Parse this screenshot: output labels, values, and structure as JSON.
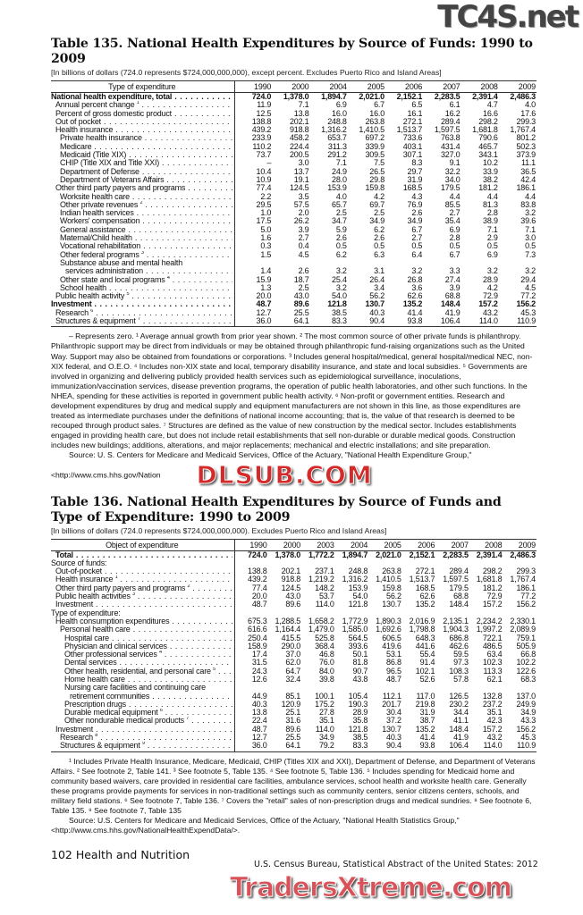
{
  "watermarks": {
    "top": "TC4S.net",
    "middle": "DLSUB.COM",
    "bottom": "TradersXtreme.com"
  },
  "table135": {
    "title": "Table 135. National Health Expenditures by Source of Funds: 1990 to 2009",
    "subtitle": "[In billions of dollars (724.0 represents $724,000,000,000), except percent. Excludes Puerto Rico and Island Areas]",
    "label_header": "Type of expenditure",
    "years": [
      "1990",
      "2000",
      "2004",
      "2005",
      "2006",
      "2007",
      "2008",
      "2009"
    ],
    "rows": [
      {
        "label": "National health expenditure, total",
        "level": 0,
        "bold": true,
        "values": [
          "724.0",
          "1,378.0",
          "1,894.7",
          "2,021.0",
          "2,152.1",
          "2,283.5",
          "2,391.4",
          "2,486.3"
        ]
      },
      {
        "label": "Annual percent change",
        "note": "1",
        "level": 1,
        "values": [
          "11.9",
          "7.1",
          "6.9",
          "6.7",
          "6.5",
          "6.1",
          "4.7",
          "4.0"
        ]
      },
      {
        "label": "Percent of gross domestic product",
        "level": 1,
        "values": [
          "12.5",
          "13.8",
          "16.0",
          "16.0",
          "16.1",
          "16.2",
          "16.6",
          "17.6"
        ]
      },
      {
        "label": "Out of pocket",
        "level": 1,
        "values": [
          "138.8",
          "202.1",
          "248.8",
          "263.8",
          "272.1",
          "289.4",
          "298.2",
          "299.3"
        ]
      },
      {
        "label": "Health insurance",
        "level": 1,
        "values": [
          "439.2",
          "918.8",
          "1,316.2",
          "1,410.5",
          "1,513.7",
          "1,597.5",
          "1,681.8",
          "1,767.4"
        ]
      },
      {
        "label": "Private health insurance",
        "level": 2,
        "values": [
          "233.9",
          "458.2",
          "653.7",
          "697.2",
          "733.6",
          "763.8",
          "790.6",
          "801.2"
        ]
      },
      {
        "label": "Medicare",
        "level": 2,
        "values": [
          "110.2",
          "224.4",
          "311.3",
          "339.9",
          "403.1",
          "431.4",
          "465.7",
          "502.3"
        ]
      },
      {
        "label": "Medicaid (Title XIX)",
        "level": 2,
        "values": [
          "73.7",
          "200.5",
          "291.2",
          "309.5",
          "307.1",
          "327.0",
          "343.1",
          "373.9"
        ]
      },
      {
        "label": "CHIP (Title XIX and Title XXI)",
        "level": 2,
        "values": [
          "–",
          "3.0",
          "7.1",
          "7.5",
          "8.3",
          "9.1",
          "10.2",
          "11.1"
        ]
      },
      {
        "label": "Department of Defense",
        "level": 2,
        "values": [
          "10.4",
          "13.7",
          "24.9",
          "26.5",
          "29.7",
          "32.2",
          "33.9",
          "36.5"
        ]
      },
      {
        "label": "Department of Veterans Affairs",
        "level": 2,
        "values": [
          "10.9",
          "19.1",
          "28.0",
          "29.8",
          "31.9",
          "34.0",
          "38.2",
          "42.4"
        ]
      },
      {
        "label": "Other third party payers and programs",
        "level": 1,
        "values": [
          "77.4",
          "124.5",
          "153.9",
          "159.8",
          "168.5",
          "179.5",
          "181.2",
          "186.1"
        ]
      },
      {
        "label": "Worksite health care",
        "level": 2,
        "values": [
          "2.2",
          "3.5",
          "4.0",
          "4.2",
          "4.3",
          "4.4",
          "4.4",
          "4.4"
        ]
      },
      {
        "label": "Other private revenues",
        "note": "2",
        "level": 2,
        "values": [
          "29.5",
          "57.5",
          "65.7",
          "69.7",
          "76.9",
          "85.5",
          "81.3",
          "83.8"
        ]
      },
      {
        "label": "Indian health services",
        "level": 2,
        "values": [
          "1.0",
          "2.0",
          "2.5",
          "2.5",
          "2.6",
          "2.7",
          "2.8",
          "3.2"
        ]
      },
      {
        "label": "Workers' compensation",
        "level": 2,
        "values": [
          "17.5",
          "26.2",
          "34.7",
          "34.9",
          "34.9",
          "35.4",
          "38.9",
          "39.6"
        ]
      },
      {
        "label": "General assistance",
        "level": 2,
        "values": [
          "5.0",
          "3.9",
          "5.9",
          "6.2",
          "6.7",
          "6.9",
          "7.1",
          "7.1"
        ]
      },
      {
        "label": "Maternal/Child health",
        "level": 2,
        "values": [
          "1.6",
          "2.7",
          "2.6",
          "2.6",
          "2.7",
          "2.8",
          "2.9",
          "3.0"
        ]
      },
      {
        "label": "Vocational rehabilitation",
        "level": 2,
        "values": [
          "0.3",
          "0.4",
          "0.5",
          "0.5",
          "0.5",
          "0.5",
          "0.5",
          "0.5"
        ]
      },
      {
        "label": "Other federal programs",
        "note": "3",
        "level": 2,
        "values": [
          "1.5",
          "4.5",
          "6.2",
          "6.3",
          "6.4",
          "6.7",
          "6.9",
          "7.3"
        ]
      },
      {
        "label": "Substance abuse and mental health",
        "cont": "services administration",
        "level": 2,
        "values": [
          "1.4",
          "2.6",
          "3.2",
          "3.1",
          "3.2",
          "3.3",
          "3.2",
          "3.2"
        ]
      },
      {
        "label": "Other state and local programs",
        "note": "4",
        "level": 2,
        "values": [
          "15.9",
          "18.7",
          "25.4",
          "26.4",
          "26.8",
          "27.4",
          "28.9",
          "29.4"
        ]
      },
      {
        "label": "School health",
        "level": 2,
        "values": [
          "1.3",
          "2.5",
          "3.2",
          "3.4",
          "3.6",
          "3.9",
          "4.2",
          "4.5"
        ]
      },
      {
        "label": "Public health activity",
        "note": "5",
        "level": 1,
        "values": [
          "20.0",
          "43.0",
          "54.0",
          "56.2",
          "62.6",
          "68.8",
          "72.9",
          "77.2"
        ]
      },
      {
        "label": "Investment",
        "level": 0,
        "bold": true,
        "values": [
          "48.7",
          "89.6",
          "121.8",
          "130.7",
          "135.2",
          "148.4",
          "157.2",
          "156.2"
        ]
      },
      {
        "label": "Research",
        "note": "6",
        "level": 1,
        "values": [
          "12.7",
          "25.5",
          "38.5",
          "40.3",
          "41.4",
          "41.9",
          "43.2",
          "45.3"
        ]
      },
      {
        "label": "Structures & equipment",
        "note": "7",
        "level": 1,
        "values": [
          "36.0",
          "64.1",
          "83.3",
          "90.4",
          "93.8",
          "106.4",
          "114.0",
          "110.9"
        ]
      }
    ],
    "notes": "– Represents zero. ¹ Average annual growth from prior year shown. ² The most common source of other private funds is philanthropy. Philanthropic support may be direct from individuals or may be obtained through philanthropic fund-raising organizations such as the United Way. Support may also be obtained from foundations or corporations. ³ Includes general hospital/medical, general hospital/medical NEC, non-XIX federal, and O.E.O. ⁴ Includes non-XIX state and local, temporary disability insurance, and state and local subsidies. ⁵ Governments are involved in organizing and delivering publicly provided health services such as epidemiological surveillance, inoculations, immunization/vaccination services, disease prevention programs, the operation of public health laboratories, and other such functions. In the NHEA, spending for these activities is reported in government public health activity. ⁶ Non-profit or government entities. Research and development expenditures by drug and medical supply and equipment manufacturers are not shown in this line, as those expenditures are treated as intermediate purchases under the definitions of national income accounting; that is, the value of that research is deemed to be recouped through product sales. ⁷ Structures are defined as the value of new construction by the medical sector. Includes establishments engaged in providing health care, but does not include retail establishments that sell non-durable or durable medical goods. Construction includes new buildings; additions, alterations, and major replacements; mechanical and electric installations; and site preparation.",
    "source": "Source: U. S. Centers for Medicare and Medicaid Services, Office of the Actuary, \"National Health Expenditure Group,\" <http://www.cms.hhs.gov/Nation"
  },
  "table136": {
    "title": "Table 136. National Health Expenditures by Source of Funds and Type of Expenditure: 1990 to 2009",
    "subtitle": "[In billions of dollars (724.0 represents $724,000,000,000). Excludes Puerto Rico and Island Areas]",
    "label_header": "Object of expenditure",
    "years": [
      "1990",
      "2000",
      "2003",
      "2004",
      "2005",
      "2006",
      "2007",
      "2008",
      "2009"
    ],
    "rows": [
      {
        "label": "Total",
        "level": 1,
        "bold": true,
        "values": [
          "724.0",
          "1,378.0",
          "1,772.2",
          "1,894.7",
          "2,021.0",
          "2,152.1",
          "2,283.5",
          "2,391.4",
          "2,486.3"
        ]
      },
      {
        "label": "Source of funds:",
        "level": 0,
        "nodots": true,
        "values": []
      },
      {
        "label": "Out-of-pocket",
        "level": 1,
        "values": [
          "138.8",
          "202.1",
          "237.1",
          "248.8",
          "263.8",
          "272.1",
          "289.4",
          "298.2",
          "299.3"
        ]
      },
      {
        "label": "Health insurance",
        "note": "1",
        "level": 1,
        "values": [
          "439.2",
          "918.8",
          "1,219.2",
          "1,316.2",
          "1,410.5",
          "1,513.7",
          "1,597.5",
          "1,681.8",
          "1,767.4"
        ]
      },
      {
        "label": "Other third party payers and programs",
        "note": "2",
        "level": 1,
        "values": [
          "77.4",
          "124.5",
          "148.2",
          "153.9",
          "159.8",
          "168.5",
          "179.5",
          "181.2",
          "186.1"
        ]
      },
      {
        "label": "Public health activities",
        "note": "3",
        "level": 1,
        "values": [
          "20.0",
          "43.0",
          "53.7",
          "54.0",
          "56.2",
          "62.6",
          "68.8",
          "72.9",
          "77.2"
        ]
      },
      {
        "label": "Investment",
        "level": 1,
        "values": [
          "48.7",
          "89.6",
          "114.0",
          "121.8",
          "130.7",
          "135.2",
          "148.4",
          "157.2",
          "156.2"
        ]
      },
      {
        "label": "Type of expenditure:",
        "level": 0,
        "nodots": true,
        "values": []
      },
      {
        "label": "Health consumption expenditures",
        "level": 1,
        "values": [
          "675.3",
          "1,288.5",
          "1,658.2",
          "1,772.9",
          "1,890.3",
          "2,016.9",
          "2,135.1",
          "2,234.2",
          "2,330.1"
        ]
      },
      {
        "label": "Personal health care",
        "level": 2,
        "values": [
          "616.6",
          "1,164.4",
          "1,479.0",
          "1,585.0",
          "1,692.6",
          "1,798.8",
          "1,904.3",
          "1,997.2",
          "2,089.9"
        ]
      },
      {
        "label": "Hospital care",
        "level": 3,
        "values": [
          "250.4",
          "415.5",
          "525.8",
          "564.5",
          "606.5",
          "648.3",
          "686.8",
          "722.1",
          "759.1"
        ]
      },
      {
        "label": "Physician and clinical services",
        "level": 3,
        "values": [
          "158.9",
          "290.0",
          "368.4",
          "393.6",
          "419.6",
          "441.6",
          "462.6",
          "486.5",
          "505.9"
        ]
      },
      {
        "label": "Other professional services",
        "note": "4",
        "level": 3,
        "values": [
          "17.4",
          "37.0",
          "46.8",
          "50.1",
          "53.1",
          "55.4",
          "59.5",
          "63.4",
          "66.8"
        ]
      },
      {
        "label": "Dental services",
        "level": 3,
        "values": [
          "31.5",
          "62.0",
          "76.0",
          "81.8",
          "86.8",
          "91.4",
          "97.3",
          "102.3",
          "102.2"
        ]
      },
      {
        "label": "Other health, residential, and personal care",
        "note": "5",
        "level": 3,
        "values": [
          "24.3",
          "64.7",
          "84.0",
          "90.7",
          "96.5",
          "102.1",
          "108.3",
          "113.3",
          "122.6"
        ]
      },
      {
        "label": "Home health care",
        "level": 3,
        "values": [
          "12.6",
          "32.4",
          "39.8",
          "43.8",
          "48.7",
          "52.6",
          "57.8",
          "62.1",
          "68.3"
        ]
      },
      {
        "label": "Nursing care facilities and continuing care",
        "cont": "retirement communities",
        "level": 3,
        "values": [
          "44.9",
          "85.1",
          "100.1",
          "105.4",
          "112.1",
          "117.0",
          "126.5",
          "132.8",
          "137.0"
        ]
      },
      {
        "label": "Prescription drugs",
        "level": 3,
        "values": [
          "40.3",
          "120.9",
          "175.2",
          "190.3",
          "201.7",
          "219.8",
          "230.2",
          "237.2",
          "249.9"
        ]
      },
      {
        "label": "Durable medical equipment",
        "note": "6",
        "level": 3,
        "values": [
          "13.8",
          "25.1",
          "27.8",
          "28.9",
          "30.4",
          "31.9",
          "34.4",
          "35.1",
          "34.9"
        ]
      },
      {
        "label": "Other nondurable medical products",
        "note": "7",
        "level": 3,
        "values": [
          "22.4",
          "31.6",
          "35.1",
          "35.8",
          "37.2",
          "38.7",
          "41.1",
          "42.3",
          "43.3"
        ]
      },
      {
        "label": "Investment",
        "level": 1,
        "values": [
          "48.7",
          "89.6",
          "114.0",
          "121.8",
          "130.7",
          "135.2",
          "148.4",
          "157.2",
          "156.2"
        ]
      },
      {
        "label": "Research",
        "note": "8",
        "level": 2,
        "values": [
          "12.7",
          "25.5",
          "34.9",
          "38.5",
          "40.3",
          "41.4",
          "41.9",
          "43.2",
          "45.3"
        ]
      },
      {
        "label": "Structures & equipment",
        "note": "9",
        "level": 2,
        "values": [
          "36.0",
          "64.1",
          "79.2",
          "83.3",
          "90.4",
          "93.8",
          "106.4",
          "114.0",
          "110.9"
        ]
      }
    ],
    "notes": "¹ Includes Private Health Insurance, Medicare, Medicaid, CHIP (Titles XIX and XXI), Department of Defense, and Department of Veterans Affairs. ² See footnote 2, Table 141. ³ See footnote 5, Table 135. ⁴ See footnote 5, Table 136. ⁵ Includes spending for Medicaid home and community based waivers, care provided in residential care facilities, ambulance services, school health and worksite health care. Generally these programs provide payments for services in non-traditional settings such as community centers, senior citizens centers, schools, and military field stations. ⁶ See footnote 7, Table 136. ⁷ Covers the \"retail\" sales of non-prescription drugs and medical sundries. ⁸ See footnote 6, Table 135. ⁹ See footnote 7, Table 135",
    "source": "Source: U.S. Centers for Medicare and Medicaid Services, Office of the Actuary, \"National Health Statistics Group,\" <http://www.cms.hhs.gov/NationalHealthExpendData/>."
  },
  "footer": {
    "page_label": "102  Health and Nutrition",
    "publication": "U.S. Census Bureau, Statistical Abstract of the United States: 2012"
  }
}
